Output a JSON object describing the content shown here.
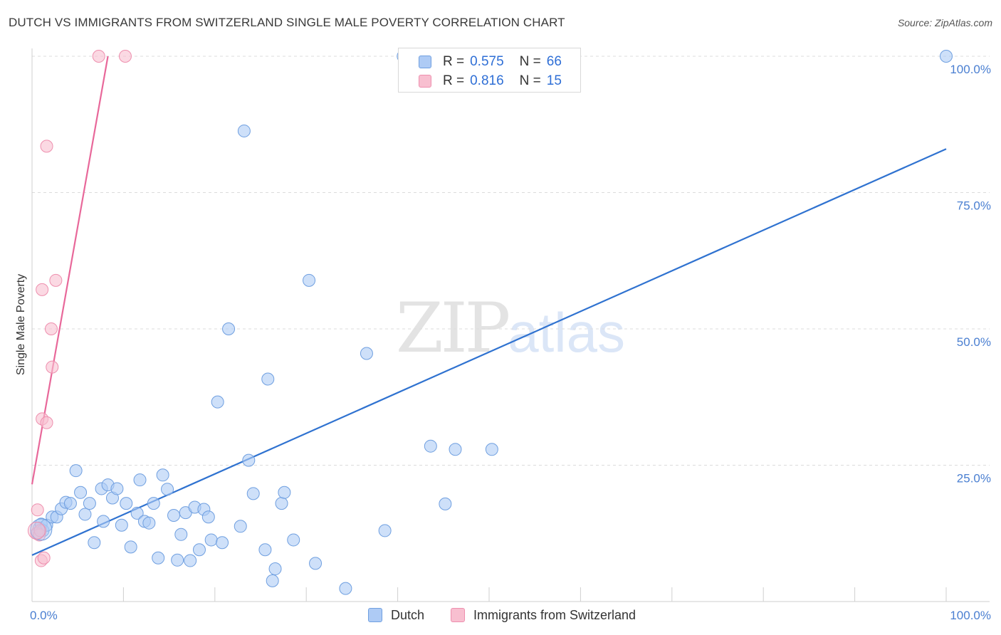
{
  "title": "DUTCH VS IMMIGRANTS FROM SWITZERLAND SINGLE MALE POVERTY CORRELATION CHART",
  "source": "Source: ZipAtlas.com",
  "watermark": {
    "zip": "ZIP",
    "atlas": "atlas"
  },
  "colors": {
    "dutch_fill": "#aecbf5",
    "dutch_stroke": "#6f9fe0",
    "dutch_line": "#2f72d0",
    "swiss_fill": "#f8bfd0",
    "swiss_stroke": "#ee8fae",
    "swiss_line": "#e8689a",
    "grid": "#dcdcdc",
    "tick_text": "#4a7fd1"
  },
  "legend": {
    "rows": [
      {
        "r_label": "R =",
        "r_value": "0.575",
        "n_label": "N =",
        "n_value": "66"
      },
      {
        "r_label": "R =",
        "r_value": "0.816",
        "n_label": "N =",
        "n_value": "15"
      }
    ]
  },
  "bottom_legend": {
    "dutch": "Dutch",
    "swiss": "Immigrants from Switzerland"
  },
  "chart_data": {
    "type": "scatter",
    "xlabel": "",
    "ylabel": "Single Male Poverty",
    "xlim": [
      0,
      100
    ],
    "ylim": [
      0,
      100
    ],
    "x_tick_labels": [
      "0.0%",
      "100.0%"
    ],
    "y_tick_labels": [
      "100.0%",
      "75.0%",
      "50.0%",
      "25.0%"
    ],
    "y_ticks": [
      100,
      75,
      50,
      25
    ],
    "series": [
      {
        "name": "Dutch",
        "R": 0.575,
        "N": 66,
        "trend": {
          "x": [
            0,
            100
          ],
          "y": [
            8.5,
            83
          ]
        },
        "points": [
          [
            0.6,
            12.5
          ],
          [
            0.8,
            13.5
          ],
          [
            1.0,
            14.2
          ],
          [
            1.2,
            13.0
          ],
          [
            1.6,
            14.0
          ],
          [
            2.2,
            15.5
          ],
          [
            2.7,
            15.5
          ],
          [
            3.2,
            17.0
          ],
          [
            3.7,
            18.2
          ],
          [
            4.2,
            18.0
          ],
          [
            4.8,
            24.0
          ],
          [
            5.3,
            20.0
          ],
          [
            5.8,
            16.0
          ],
          [
            6.3,
            18.0
          ],
          [
            6.8,
            10.8
          ],
          [
            7.6,
            20.7
          ],
          [
            7.8,
            14.7
          ],
          [
            8.3,
            21.4
          ],
          [
            8.8,
            19.0
          ],
          [
            9.3,
            20.7
          ],
          [
            9.8,
            14.0
          ],
          [
            10.3,
            18.0
          ],
          [
            10.8,
            10.0
          ],
          [
            11.5,
            16.2
          ],
          [
            11.8,
            22.3
          ],
          [
            12.3,
            14.7
          ],
          [
            12.8,
            14.4
          ],
          [
            13.3,
            18.0
          ],
          [
            13.8,
            8.0
          ],
          [
            14.3,
            23.2
          ],
          [
            14.8,
            20.6
          ],
          [
            15.5,
            15.8
          ],
          [
            15.9,
            7.6
          ],
          [
            16.3,
            12.3
          ],
          [
            16.8,
            16.3
          ],
          [
            17.3,
            7.5
          ],
          [
            17.8,
            17.3
          ],
          [
            18.3,
            9.5
          ],
          [
            18.8,
            16.9
          ],
          [
            19.3,
            15.5
          ],
          [
            19.6,
            11.3
          ],
          [
            20.3,
            36.6
          ],
          [
            20.8,
            10.8
          ],
          [
            21.5,
            50.0
          ],
          [
            22.8,
            13.8
          ],
          [
            23.2,
            86.3
          ],
          [
            23.7,
            25.9
          ],
          [
            24.2,
            19.8
          ],
          [
            25.5,
            9.5
          ],
          [
            25.8,
            40.8
          ],
          [
            26.3,
            3.8
          ],
          [
            26.6,
            6.0
          ],
          [
            27.3,
            18.0
          ],
          [
            27.6,
            20.0
          ],
          [
            28.6,
            11.3
          ],
          [
            31.0,
            7.0
          ],
          [
            30.3,
            58.9
          ],
          [
            34.3,
            2.4
          ],
          [
            36.6,
            45.5
          ],
          [
            38.6,
            13.0
          ],
          [
            40.6,
            100
          ],
          [
            43.6,
            28.5
          ],
          [
            45.2,
            17.9
          ],
          [
            46.3,
            27.9
          ],
          [
            50.3,
            27.9
          ],
          [
            100,
            100
          ]
        ]
      },
      {
        "name": "Immigrants from Switzerland",
        "R": 0.816,
        "N": 15,
        "trend": {
          "x": [
            0,
            8.3
          ],
          "y": [
            21.5,
            100
          ]
        },
        "points": [
          [
            0.5,
            12.5
          ],
          [
            0.6,
            16.8
          ],
          [
            0.8,
            12.2
          ],
          [
            0.9,
            13.0
          ],
          [
            1.0,
            7.5
          ],
          [
            1.1,
            33.5
          ],
          [
            1.1,
            57.2
          ],
          [
            1.3,
            8.0
          ],
          [
            1.6,
            83.5
          ],
          [
            1.6,
            32.8
          ],
          [
            2.1,
            50.0
          ],
          [
            2.2,
            43.0
          ],
          [
            2.6,
            58.9
          ],
          [
            7.3,
            100
          ],
          [
            10.2,
            100
          ]
        ]
      }
    ]
  }
}
